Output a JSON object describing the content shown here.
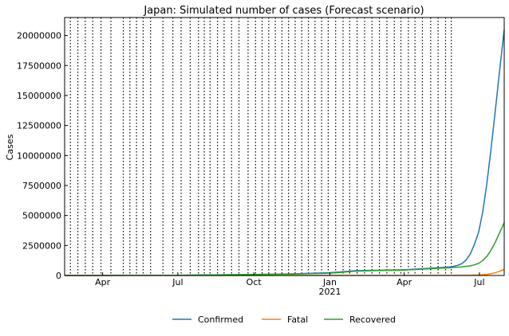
{
  "chart_data": {
    "type": "line",
    "title": "Japan: Simulated number of cases (Forecast scenario)",
    "xlabel": "",
    "ylabel": "Cases",
    "ylim": [
      0,
      21500000
    ],
    "xlim": [
      "2020-02-15",
      "2021-07-31"
    ],
    "grid": false,
    "legend_position": "bottom-center",
    "x_ticks": [
      {
        "date": "2020-04-01",
        "label": "Apr",
        "sub": ""
      },
      {
        "date": "2020-07-01",
        "label": "Jul",
        "sub": ""
      },
      {
        "date": "2020-10-01",
        "label": "Oct",
        "sub": ""
      },
      {
        "date": "2021-01-01",
        "label": "Jan",
        "sub": "2021"
      },
      {
        "date": "2021-04-01",
        "label": "Apr",
        "sub": ""
      },
      {
        "date": "2021-07-01",
        "label": "Jul",
        "sub": ""
      }
    ],
    "y_ticks": [
      {
        "value": 0,
        "label": "0"
      },
      {
        "value": 2500000,
        "label": "2500000"
      },
      {
        "value": 5000000,
        "label": "5000000"
      },
      {
        "value": 7500000,
        "label": "7500000"
      },
      {
        "value": 10000000,
        "label": "10000000"
      },
      {
        "value": 12500000,
        "label": "12500000"
      },
      {
        "value": 15000000,
        "label": "15000000"
      },
      {
        "value": 17500000,
        "label": "17500000"
      },
      {
        "value": 20000000,
        "label": "20000000"
      }
    ],
    "phase_change_dates": [
      "2020-02-22",
      "2020-03-02",
      "2020-03-11",
      "2020-03-20",
      "2020-03-30",
      "2020-04-11",
      "2020-04-26",
      "2020-05-04",
      "2020-05-12",
      "2020-05-20",
      "2020-05-29",
      "2020-06-13",
      "2020-06-25",
      "2020-07-05",
      "2020-07-16",
      "2020-07-26",
      "2020-08-02",
      "2020-08-09",
      "2020-08-18",
      "2020-08-26",
      "2020-09-04",
      "2020-09-13",
      "2020-09-24",
      "2020-10-03",
      "2020-10-11",
      "2020-10-19",
      "2020-10-27",
      "2020-11-04",
      "2020-11-12",
      "2020-11-20",
      "2020-11-28",
      "2020-12-06",
      "2020-12-14",
      "2020-12-22",
      "2020-12-30",
      "2021-01-08",
      "2021-01-17",
      "2021-01-25",
      "2021-02-03",
      "2021-02-12",
      "2021-02-21",
      "2021-03-02",
      "2021-03-11",
      "2021-03-20",
      "2021-03-28",
      "2021-04-06",
      "2021-04-14",
      "2021-04-23",
      "2021-05-03",
      "2021-05-12",
      "2021-05-21",
      "2021-05-28"
    ],
    "series": [
      {
        "name": "Confirmed",
        "color": "#1f77b4",
        "points": [
          [
            "2020-02-15",
            0
          ],
          [
            "2020-04-01",
            2000
          ],
          [
            "2020-05-01",
            15000
          ],
          [
            "2020-07-01",
            20000
          ],
          [
            "2020-08-15",
            55000
          ],
          [
            "2020-10-01",
            85000
          ],
          [
            "2020-11-15",
            130000
          ],
          [
            "2021-01-01",
            230000
          ],
          [
            "2021-02-01",
            400000
          ],
          [
            "2021-03-01",
            440000
          ],
          [
            "2021-04-01",
            480000
          ],
          [
            "2021-05-01",
            600000
          ],
          [
            "2021-05-28",
            720000
          ],
          [
            "2021-06-05",
            850000
          ],
          [
            "2021-06-10",
            1000000
          ],
          [
            "2021-06-15",
            1300000
          ],
          [
            "2021-06-20",
            1800000
          ],
          [
            "2021-06-25",
            2600000
          ],
          [
            "2021-06-30",
            3600000
          ],
          [
            "2021-07-05",
            5300000
          ],
          [
            "2021-07-10",
            7700000
          ],
          [
            "2021-07-15",
            10500000
          ],
          [
            "2021-07-20",
            13600000
          ],
          [
            "2021-07-25",
            16800000
          ],
          [
            "2021-07-31",
            20500000
          ]
        ]
      },
      {
        "name": "Fatal",
        "color": "#ff7f0e",
        "points": [
          [
            "2020-02-15",
            0
          ],
          [
            "2020-06-01",
            900
          ],
          [
            "2020-10-01",
            1600
          ],
          [
            "2021-01-01",
            4000
          ],
          [
            "2021-04-01",
            9000
          ],
          [
            "2021-06-01",
            13000
          ],
          [
            "2021-06-20",
            18000
          ],
          [
            "2021-07-01",
            40000
          ],
          [
            "2021-07-10",
            90000
          ],
          [
            "2021-07-20",
            220000
          ],
          [
            "2021-07-31",
            500000
          ]
        ]
      },
      {
        "name": "Recovered",
        "color": "#2ca02c",
        "points": [
          [
            "2020-02-15",
            0
          ],
          [
            "2020-04-01",
            500
          ],
          [
            "2020-05-01",
            10000
          ],
          [
            "2020-07-01",
            18000
          ],
          [
            "2020-08-15",
            45000
          ],
          [
            "2020-10-01",
            80000
          ],
          [
            "2020-11-15",
            110000
          ],
          [
            "2021-01-01",
            190000
          ],
          [
            "2021-02-01",
            360000
          ],
          [
            "2021-03-01",
            410000
          ],
          [
            "2021-04-01",
            450000
          ],
          [
            "2021-05-01",
            560000
          ],
          [
            "2021-05-28",
            660000
          ],
          [
            "2021-06-10",
            720000
          ],
          [
            "2021-06-20",
            800000
          ],
          [
            "2021-06-25",
            880000
          ],
          [
            "2021-07-01",
            1050000
          ],
          [
            "2021-07-05",
            1250000
          ],
          [
            "2021-07-10",
            1600000
          ],
          [
            "2021-07-15",
            2100000
          ],
          [
            "2021-07-20",
            2750000
          ],
          [
            "2021-07-25",
            3500000
          ],
          [
            "2021-07-31",
            4400000
          ]
        ]
      }
    ]
  }
}
